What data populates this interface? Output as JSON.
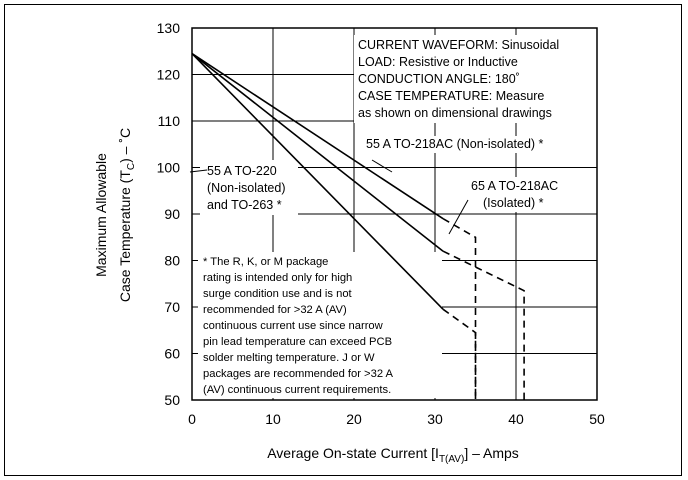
{
  "chart_data": {
    "type": "line",
    "xlabel": {
      "main": "Average On-state Current [I",
      "sub": "T(AV)",
      "tail": "] – Amps"
    },
    "ylabel": {
      "line1": "Maximum Allowable",
      "line2_main": "Case Temperature (T",
      "line2_sub": "C",
      "line2_tail": ") – ˚C"
    },
    "xlim": [
      0,
      50
    ],
    "ylim": [
      50,
      130
    ],
    "xticks": [
      0,
      10,
      20,
      30,
      40,
      50
    ],
    "yticks": [
      50,
      60,
      70,
      80,
      90,
      100,
      110,
      120,
      130
    ],
    "grid": true,
    "conditions": [
      "CURRENT WAVEFORM: Sinusoidal",
      "LOAD: Resistive or Inductive",
      "CONDUCTION ANGLE: 180˚",
      "CASE TEMPERATURE: Measure",
      "as shown on dimensional drawings"
    ],
    "series": [
      {
        "id": "s1",
        "points": [
          [
            0,
            124.5
          ],
          [
            31,
            69.5
          ]
        ],
        "dashed": [
          [
            31,
            69.5
          ],
          [
            35,
            64.5
          ],
          [
            35,
            50
          ]
        ]
      },
      {
        "id": "s2",
        "points": [
          [
            0,
            124.5
          ],
          [
            31,
            82
          ]
        ],
        "dashed": [
          [
            31,
            82
          ],
          [
            41,
            73.5
          ],
          [
            41,
            50
          ]
        ]
      },
      {
        "id": "s3",
        "points": [
          [
            0,
            124.5
          ],
          [
            31,
            89
          ]
        ],
        "dashed": [
          [
            31,
            89
          ],
          [
            35,
            85
          ],
          [
            35,
            50
          ]
        ]
      }
    ],
    "annotations": {
      "a1": [
        "55 A TO-220",
        "(Non-isolated)",
        "and TO-263 *"
      ],
      "a2": [
        "55 A TO-218AC (Non-isolated) *"
      ],
      "a3": [
        "65 A TO-218AC",
        "(Isolated) *"
      ],
      "note": [
        "* The R, K, or M package",
        "rating is intended only for high",
        "surge condition use and is not",
        "recommended for >32 A (AV)",
        "continuous current use since narrow",
        "pin lead temperature can exceed PCB",
        "solder melting temperature. J or W",
        "packages are recommended for >32 A",
        "(AV) continuous current requirements."
      ]
    }
  }
}
